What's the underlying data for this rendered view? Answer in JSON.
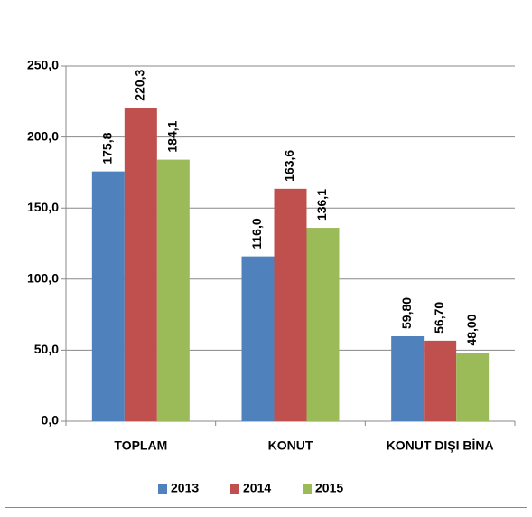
{
  "chart_data": {
    "type": "bar",
    "categories": [
      "TOPLAM",
      "KONUT",
      "KONUT DIŞI BİNA"
    ],
    "series": [
      {
        "name": "2013",
        "color": "#4f81bd",
        "values": [
          175.8,
          116.0,
          59.8
        ],
        "value_labels": [
          "175,8",
          "116,0",
          "59,80"
        ]
      },
      {
        "name": "2014",
        "color": "#c0504d",
        "values": [
          220.3,
          163.6,
          56.7
        ],
        "value_labels": [
          "220,3",
          "163,6",
          "56,70"
        ]
      },
      {
        "name": "2015",
        "color": "#9bbb59",
        "values": [
          184.1,
          136.1,
          48.0
        ],
        "value_labels": [
          "184,1",
          "136,1",
          "48,00"
        ]
      }
    ],
    "ylim": [
      0,
      250
    ],
    "yticks": [
      {
        "value": 0,
        "label": "0,0"
      },
      {
        "value": 50,
        "label": "50,0"
      },
      {
        "value": 100,
        "label": "100,0"
      },
      {
        "value": 150,
        "label": "150,0"
      },
      {
        "value": 200,
        "label": "200,0"
      },
      {
        "value": 250,
        "label": "250,0"
      }
    ],
    "grid": true,
    "legend": "bottom"
  }
}
